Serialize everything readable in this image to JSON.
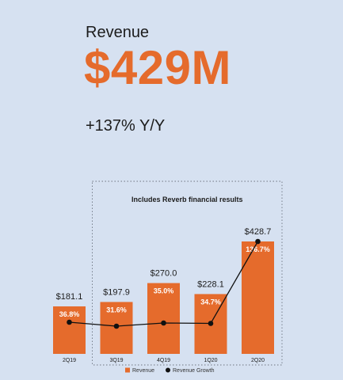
{
  "headline": {
    "label": "Revenue",
    "value": "$429M",
    "change": "+137% Y/Y"
  },
  "colors": {
    "background": "#d6e1f1",
    "accent": "#e56b2c",
    "growth_line": "#111111"
  },
  "chart_data": {
    "type": "bar",
    "categories": [
      "2Q19",
      "3Q19",
      "4Q19",
      "1Q20",
      "2Q20"
    ],
    "series": [
      {
        "name": "Revenue",
        "type": "bar",
        "values": [
          181.1,
          197.9,
          270.0,
          228.1,
          428.7
        ],
        "value_labels": [
          "$181.1",
          "$197.9",
          "$270.0",
          "$228.1",
          "$428.7"
        ]
      },
      {
        "name": "Revenue Growth",
        "type": "line",
        "values": [
          36.8,
          31.6,
          35.0,
          34.7,
          136.7
        ],
        "value_labels": [
          "36.8%",
          "31.6%",
          "35.0%",
          "34.7%",
          "136.7%"
        ]
      }
    ],
    "annotation": "Includes Reverb financial results",
    "annotation_range": [
      "3Q19",
      "2Q20"
    ],
    "legend_position": "bottom",
    "ylim": [
      0,
      500
    ],
    "grid": false
  }
}
